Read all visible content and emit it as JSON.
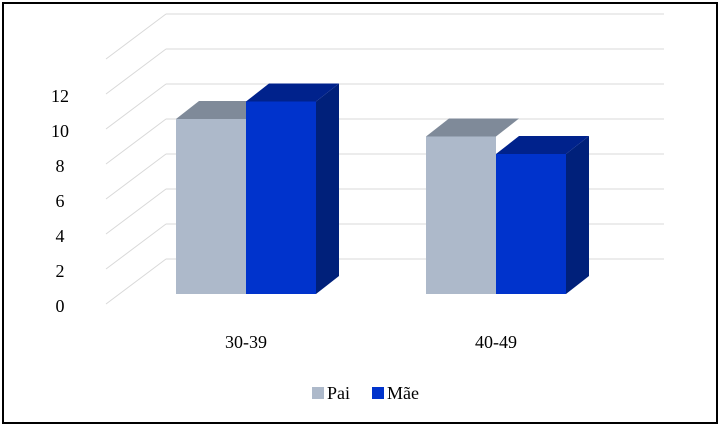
{
  "chart_data": {
    "type": "bar",
    "title": "",
    "xlabel": "",
    "ylabel": "",
    "categories": [
      "30-39",
      "40-49"
    ],
    "series": [
      {
        "name": "Pai",
        "values": [
          10,
          9
        ],
        "color": "#adb9ca"
      },
      {
        "name": "Mãe",
        "values": [
          11,
          8
        ],
        "color": "#0033cc"
      }
    ],
    "ylim": [
      0,
      12
    ],
    "yticks": [
      0,
      2,
      4,
      6,
      8,
      10,
      12
    ],
    "grid": true,
    "legend": "bottom",
    "style": "3d-column"
  },
  "colors": {
    "pai_top": "#7f8a99",
    "mae_top": "#00228c",
    "mae_side": "#00207a",
    "grid": "#d9d9d9"
  }
}
